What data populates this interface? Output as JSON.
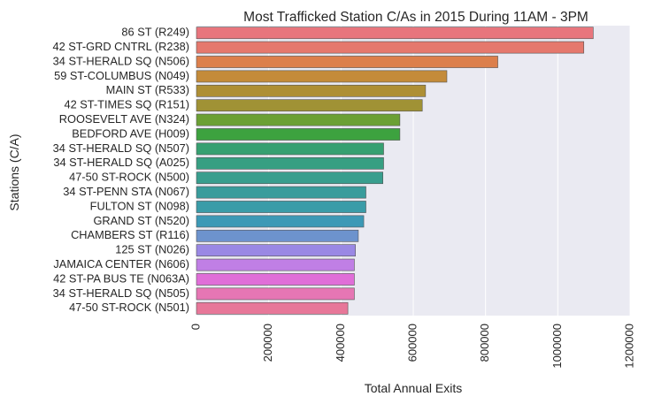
{
  "chart_data": {
    "type": "bar",
    "orientation": "horizontal",
    "title": "Most Trafficked Station C/As in 2015 During 11AM - 3PM",
    "xlabel": "Total Annual Exits",
    "ylabel": "Stations (C/A)",
    "xlim": [
      0,
      1200000
    ],
    "xticks": [
      0,
      200000,
      400000,
      600000,
      800000,
      1000000,
      1200000
    ],
    "xtick_labels": [
      "0",
      "200000",
      "400000",
      "600000",
      "800000",
      "1000000",
      "1200000"
    ],
    "grid": true,
    "plot_background": "#eaeaf2",
    "categories": [
      "86 ST (R249)",
      "42 ST-GRD CNTRL (R238)",
      "34 ST-HERALD SQ (N506)",
      "59 ST-COLUMBUS (N049)",
      "MAIN ST (R533)",
      "42 ST-TIMES SQ (R151)",
      "ROOSEVELT AVE (N324)",
      "BEDFORD AVE (H009)",
      "34 ST-HERALD SQ (N507)",
      "34 ST-HERALD SQ (A025)",
      "47-50 ST-ROCK (N500)",
      "34 ST-PENN STA (N067)",
      "FULTON ST (N098)",
      "GRAND ST (N520)",
      "CHAMBERS ST (R116)",
      "125 ST (N026)",
      "JAMAICA CENTER (N606)",
      "42 ST-PA BUS TE (N063A)",
      "34 ST-HERALD SQ (N505)",
      "47-50 ST-ROCK (N501)"
    ],
    "values": [
      1098000,
      1072000,
      834000,
      693000,
      634000,
      625000,
      563000,
      563000,
      518000,
      518000,
      516000,
      469000,
      469000,
      463000,
      448000,
      440000,
      437000,
      437000,
      437000,
      419000
    ],
    "colors": [
      "#e8757d",
      "#e5786d",
      "#dc7f4c",
      "#c48b3a",
      "#ae8f35",
      "#a09235",
      "#6ba034",
      "#3da23f",
      "#36a071",
      "#379f82",
      "#389e8e",
      "#399c9c",
      "#3a9ca8",
      "#3c99b6",
      "#6d93cd",
      "#9a88e4",
      "#c07fe5",
      "#e06ed8",
      "#e676b4",
      "#e77799"
    ]
  }
}
